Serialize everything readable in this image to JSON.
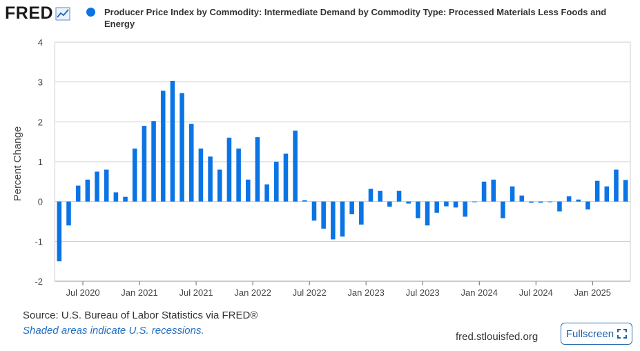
{
  "logo": {
    "text": "FRED"
  },
  "colors": {
    "bar": "#0b74e5",
    "grid": "#cccccc",
    "axis": "#333333"
  },
  "chart_data": {
    "type": "bar",
    "title": "Producer Price Index by Commodity: Intermediate Demand by Commodity Type: Processed Materials Less Foods and Energy",
    "series_name": "Producer Price Index by Commodity: Intermediate Demand by Commodity Type: Processed Materials Less Foods and Energy",
    "ylabel": "Percent Change",
    "xlabel": "",
    "ylim": [
      -2,
      4
    ],
    "y_ticks": [
      4,
      3,
      2,
      1,
      0,
      -1,
      -2
    ],
    "grid": true,
    "x_tick_labels": [
      "Jul 2020",
      "Jan 2021",
      "Jul 2021",
      "Jan 2022",
      "Jul 2022",
      "Jan 2023",
      "Jul 2023",
      "Jan 2024",
      "Jul 2024",
      "Jan 2025"
    ],
    "x_tick_dates": [
      "2020-07",
      "2021-01",
      "2021-07",
      "2022-01",
      "2022-07",
      "2023-01",
      "2023-07",
      "2024-01",
      "2024-07",
      "2025-01"
    ],
    "dates": [
      "2020-04",
      "2020-05",
      "2020-06",
      "2020-07",
      "2020-08",
      "2020-09",
      "2020-10",
      "2020-11",
      "2020-12",
      "2021-01",
      "2021-02",
      "2021-03",
      "2021-04",
      "2021-05",
      "2021-06",
      "2021-07",
      "2021-08",
      "2021-09",
      "2021-10",
      "2021-11",
      "2021-12",
      "2022-01",
      "2022-02",
      "2022-03",
      "2022-04",
      "2022-05",
      "2022-06",
      "2022-07",
      "2022-08",
      "2022-09",
      "2022-10",
      "2022-11",
      "2022-12",
      "2023-01",
      "2023-02",
      "2023-03",
      "2023-04",
      "2023-05",
      "2023-06",
      "2023-07",
      "2023-08",
      "2023-09",
      "2023-10",
      "2023-11",
      "2023-12",
      "2024-01",
      "2024-02",
      "2024-03",
      "2024-04",
      "2024-05",
      "2024-06",
      "2024-07",
      "2024-08",
      "2024-09",
      "2024-10",
      "2024-11",
      "2024-12",
      "2025-01",
      "2025-02",
      "2025-03",
      "2025-04"
    ],
    "values": [
      -1.5,
      -0.6,
      0.4,
      0.55,
      0.75,
      0.8,
      0.23,
      0.12,
      1.33,
      1.9,
      2.02,
      2.78,
      3.03,
      2.72,
      1.95,
      1.33,
      1.13,
      0.8,
      1.6,
      1.33,
      0.55,
      1.62,
      0.43,
      1.0,
      1.2,
      1.78,
      0.03,
      -0.48,
      -0.68,
      -0.95,
      -0.88,
      -0.32,
      -0.58,
      0.32,
      0.27,
      -0.13,
      0.27,
      -0.05,
      -0.42,
      -0.6,
      -0.28,
      -0.12,
      -0.15,
      -0.38,
      0.0,
      0.5,
      0.55,
      -0.42,
      0.38,
      0.15,
      -0.03,
      -0.03,
      0.0,
      -0.25,
      0.13,
      0.05,
      -0.2,
      0.52,
      0.38,
      0.8,
      0.54
    ]
  },
  "footer": {
    "source": "Source: U.S. Bureau of Labor Statistics via FRED®",
    "note": "Shaded areas indicate U.S. recessions.",
    "site": "fred.stlouisfed.org",
    "fullscreen_label": "Fullscreen"
  }
}
